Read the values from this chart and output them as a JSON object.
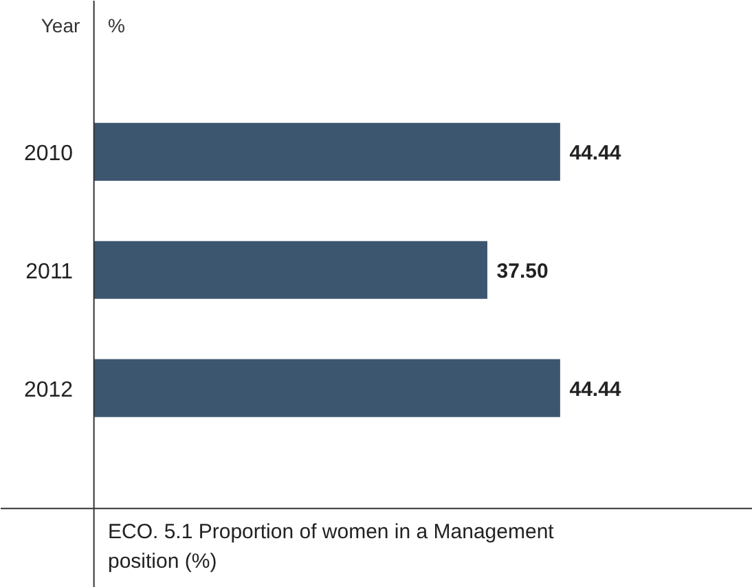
{
  "chart_data": {
    "type": "bar",
    "orientation": "horizontal",
    "xlabel": "%",
    "ylabel": "Year",
    "categories": [
      "2010",
      "2011",
      "2012"
    ],
    "values": [
      44.44,
      37.5,
      44.44
    ],
    "value_labels": [
      "44.44",
      "37.50",
      "44.44"
    ],
    "color": "#3d5670",
    "annotations": [
      "ECO. 5.1 Proportion of women in a Management\nposition (%)"
    ]
  }
}
